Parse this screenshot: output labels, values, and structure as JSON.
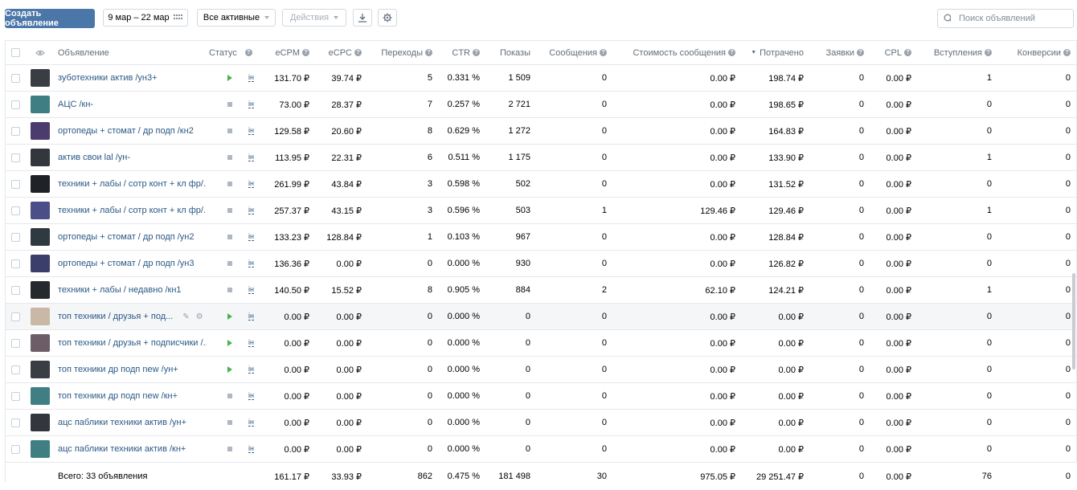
{
  "toolbar": {
    "create_label": "Создать объявление",
    "date_range": "9 мар – 22 мар",
    "filter_label": "Все активные",
    "actions_label": "Действия",
    "search_placeholder": "Поиск объявлений"
  },
  "columns": {
    "name": "Объявление",
    "status": "Статус",
    "ecpm": "eCPM",
    "ecpc": "eCPC",
    "clicks": "Переходы",
    "ctr": "CTR",
    "impressions": "Показы",
    "messages": "Сообщения",
    "msg_cost": "Стоимость сообщения",
    "spent": "Потрачено",
    "leads": "Заявки",
    "cpl": "CPL",
    "joins": "Вступления",
    "conversions": "Конверсии"
  },
  "schedule_label": "ін",
  "rows": [
    {
      "name": "зуботехники актив /ун3+",
      "status": "active",
      "ecpm": "131.70 ₽",
      "ecpc": "39.74 ₽",
      "clicks": "5",
      "ctr": "0.331 %",
      "impressions": "1 509",
      "messages": "0",
      "msg_cost": "0.00 ₽",
      "spent": "198.74 ₽",
      "leads": "0",
      "cpl": "0.00 ₽",
      "joins": "1",
      "conversions": "0",
      "thumb": "#3a3d44"
    },
    {
      "name": "АЦС /кн-",
      "status": "stopped",
      "ecpm": "73.00 ₽",
      "ecpc": "28.37 ₽",
      "clicks": "7",
      "ctr": "0.257 %",
      "impressions": "2 721",
      "messages": "0",
      "msg_cost": "0.00 ₽",
      "spent": "198.65 ₽",
      "leads": "0",
      "cpl": "0.00 ₽",
      "joins": "0",
      "conversions": "0",
      "thumb": "#3f7f83"
    },
    {
      "name": "ортопеды + стомат / др подп /кн2",
      "status": "stopped",
      "ecpm": "129.58 ₽",
      "ecpc": "20.60 ₽",
      "clicks": "8",
      "ctr": "0.629 %",
      "impressions": "1 272",
      "messages": "0",
      "msg_cost": "0.00 ₽",
      "spent": "164.83 ₽",
      "leads": "0",
      "cpl": "0.00 ₽",
      "joins": "0",
      "conversions": "0",
      "thumb": "#4b3c6e"
    },
    {
      "name": "актив свои lal /ун-",
      "status": "stopped",
      "ecpm": "113.95 ₽",
      "ecpc": "22.31 ₽",
      "clicks": "6",
      "ctr": "0.511 %",
      "impressions": "1 175",
      "messages": "0",
      "msg_cost": "0.00 ₽",
      "spent": "133.90 ₽",
      "leads": "0",
      "cpl": "0.00 ₽",
      "joins": "1",
      "conversions": "0",
      "thumb": "#33363c"
    },
    {
      "name": "техники + лабы / сотр конт + кл фр/...",
      "status": "stopped",
      "ecpm": "261.99 ₽",
      "ecpc": "43.84 ₽",
      "clicks": "3",
      "ctr": "0.598 %",
      "impressions": "502",
      "messages": "0",
      "msg_cost": "0.00 ₽",
      "spent": "131.52 ₽",
      "leads": "0",
      "cpl": "0.00 ₽",
      "joins": "0",
      "conversions": "0",
      "thumb": "#1f2226"
    },
    {
      "name": "техники + лабы / сотр конт + кл фр/...",
      "status": "stopped",
      "ecpm": "257.37 ₽",
      "ecpc": "43.15 ₽",
      "clicks": "3",
      "ctr": "0.596 %",
      "impressions": "503",
      "messages": "1",
      "msg_cost": "129.46 ₽",
      "spent": "129.46 ₽",
      "leads": "0",
      "cpl": "0.00 ₽",
      "joins": "1",
      "conversions": "0",
      "thumb": "#4a4f8a"
    },
    {
      "name": "ортопеды + стомат / др подп /ун2",
      "status": "stopped",
      "ecpm": "133.23 ₽",
      "ecpc": "128.84 ₽",
      "clicks": "1",
      "ctr": "0.103 %",
      "impressions": "967",
      "messages": "0",
      "msg_cost": "0.00 ₽",
      "spent": "128.84 ₽",
      "leads": "0",
      "cpl": "0.00 ₽",
      "joins": "0",
      "conversions": "0",
      "thumb": "#2e3a40"
    },
    {
      "name": "ортопеды + стомат / др подп /ун3",
      "status": "stopped",
      "ecpm": "136.36 ₽",
      "ecpc": "0.00 ₽",
      "clicks": "0",
      "ctr": "0.000 %",
      "impressions": "930",
      "messages": "0",
      "msg_cost": "0.00 ₽",
      "spent": "126.82 ₽",
      "leads": "0",
      "cpl": "0.00 ₽",
      "joins": "0",
      "conversions": "0",
      "thumb": "#3b3d6a"
    },
    {
      "name": "техники + лабы / недавно /кн1",
      "status": "stopped",
      "ecpm": "140.50 ₽",
      "ecpc": "15.52 ₽",
      "clicks": "8",
      "ctr": "0.905 %",
      "impressions": "884",
      "messages": "2",
      "msg_cost": "62.10 ₽",
      "spent": "124.21 ₽",
      "leads": "0",
      "cpl": "0.00 ₽",
      "joins": "1",
      "conversions": "0",
      "thumb": "#25282c"
    },
    {
      "name": "топ техники / друзья + под...",
      "status": "active",
      "ecpm": "0.00 ₽",
      "ecpc": "0.00 ₽",
      "clicks": "0",
      "ctr": "0.000 %",
      "impressions": "0",
      "messages": "0",
      "msg_cost": "0.00 ₽",
      "spent": "0.00 ₽",
      "leads": "0",
      "cpl": "0.00 ₽",
      "joins": "0",
      "conversions": "0",
      "thumb": "#c9b8a6",
      "hl": true
    },
    {
      "name": "топ техники / друзья + подписчики /...",
      "status": "active",
      "ecpm": "0.00 ₽",
      "ecpc": "0.00 ₽",
      "clicks": "0",
      "ctr": "0.000 %",
      "impressions": "0",
      "messages": "0",
      "msg_cost": "0.00 ₽",
      "spent": "0.00 ₽",
      "leads": "0",
      "cpl": "0.00 ₽",
      "joins": "0",
      "conversions": "0",
      "thumb": "#6d5d66"
    },
    {
      "name": "топ техники др подп new /ун+",
      "status": "active",
      "ecpm": "0.00 ₽",
      "ecpc": "0.00 ₽",
      "clicks": "0",
      "ctr": "0.000 %",
      "impressions": "0",
      "messages": "0",
      "msg_cost": "0.00 ₽",
      "spent": "0.00 ₽",
      "leads": "0",
      "cpl": "0.00 ₽",
      "joins": "0",
      "conversions": "0",
      "thumb": "#3a3d44"
    },
    {
      "name": "топ техники др подп new /кн+",
      "status": "stopped",
      "ecpm": "0.00 ₽",
      "ecpc": "0.00 ₽",
      "clicks": "0",
      "ctr": "0.000 %",
      "impressions": "0",
      "messages": "0",
      "msg_cost": "0.00 ₽",
      "spent": "0.00 ₽",
      "leads": "0",
      "cpl": "0.00 ₽",
      "joins": "0",
      "conversions": "0",
      "thumb": "#3f7f83"
    },
    {
      "name": "ацс паблики техники актив /ун+",
      "status": "stopped",
      "ecpm": "0.00 ₽",
      "ecpc": "0.00 ₽",
      "clicks": "0",
      "ctr": "0.000 %",
      "impressions": "0",
      "messages": "0",
      "msg_cost": "0.00 ₽",
      "spent": "0.00 ₽",
      "leads": "0",
      "cpl": "0.00 ₽",
      "joins": "0",
      "conversions": "0",
      "thumb": "#33363c"
    },
    {
      "name": "ацс паблики техники актив /кн+",
      "status": "stopped",
      "ecpm": "0.00 ₽",
      "ecpc": "0.00 ₽",
      "clicks": "0",
      "ctr": "0.000 %",
      "impressions": "0",
      "messages": "0",
      "msg_cost": "0.00 ₽",
      "spent": "0.00 ₽",
      "leads": "0",
      "cpl": "0.00 ₽",
      "joins": "0",
      "conversions": "0",
      "thumb": "#3f7f83"
    }
  ],
  "totals": {
    "label": "Всего: 33 объявления",
    "ecpm": "161.17 ₽",
    "ecpc": "33.93 ₽",
    "clicks": "862",
    "ctr": "0.475 %",
    "impressions": "181 498",
    "messages": "30",
    "msg_cost": "975.05 ₽",
    "spent": "29 251.47 ₽",
    "leads": "0",
    "cpl": "0.00 ₽",
    "joins": "76",
    "conversions": "0"
  },
  "colors": {
    "accent": "#4a76a8",
    "active": "#4bb34b",
    "stopped": "#aeb7c2",
    "link": "#2a5885"
  }
}
